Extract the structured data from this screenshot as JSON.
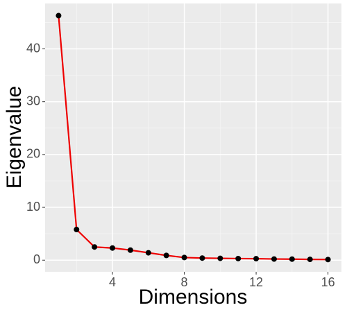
{
  "chart_data": {
    "type": "line",
    "x_label": "Dimensions",
    "y_label": "Eigenvalue",
    "x": [
      1,
      2,
      3,
      4,
      5,
      6,
      7,
      8,
      9,
      10,
      11,
      12,
      13,
      14,
      15,
      16
    ],
    "series": [
      {
        "color": "#ee0000",
        "marker_color": "#000000",
        "values": [
          46.3,
          5.8,
          2.5,
          2.3,
          1.9,
          1.4,
          0.9,
          0.5,
          0.4,
          0.35,
          0.3,
          0.28,
          0.22,
          0.2,
          0.15,
          0.12
        ]
      }
    ],
    "xlim": [
      0.25,
      16.75
    ],
    "xticks": [
      4,
      8,
      12,
      16
    ],
    "ylim": [
      -2.2,
      48.6
    ],
    "yticks": [
      0,
      10,
      20,
      30,
      40
    ],
    "grid": true
  }
}
